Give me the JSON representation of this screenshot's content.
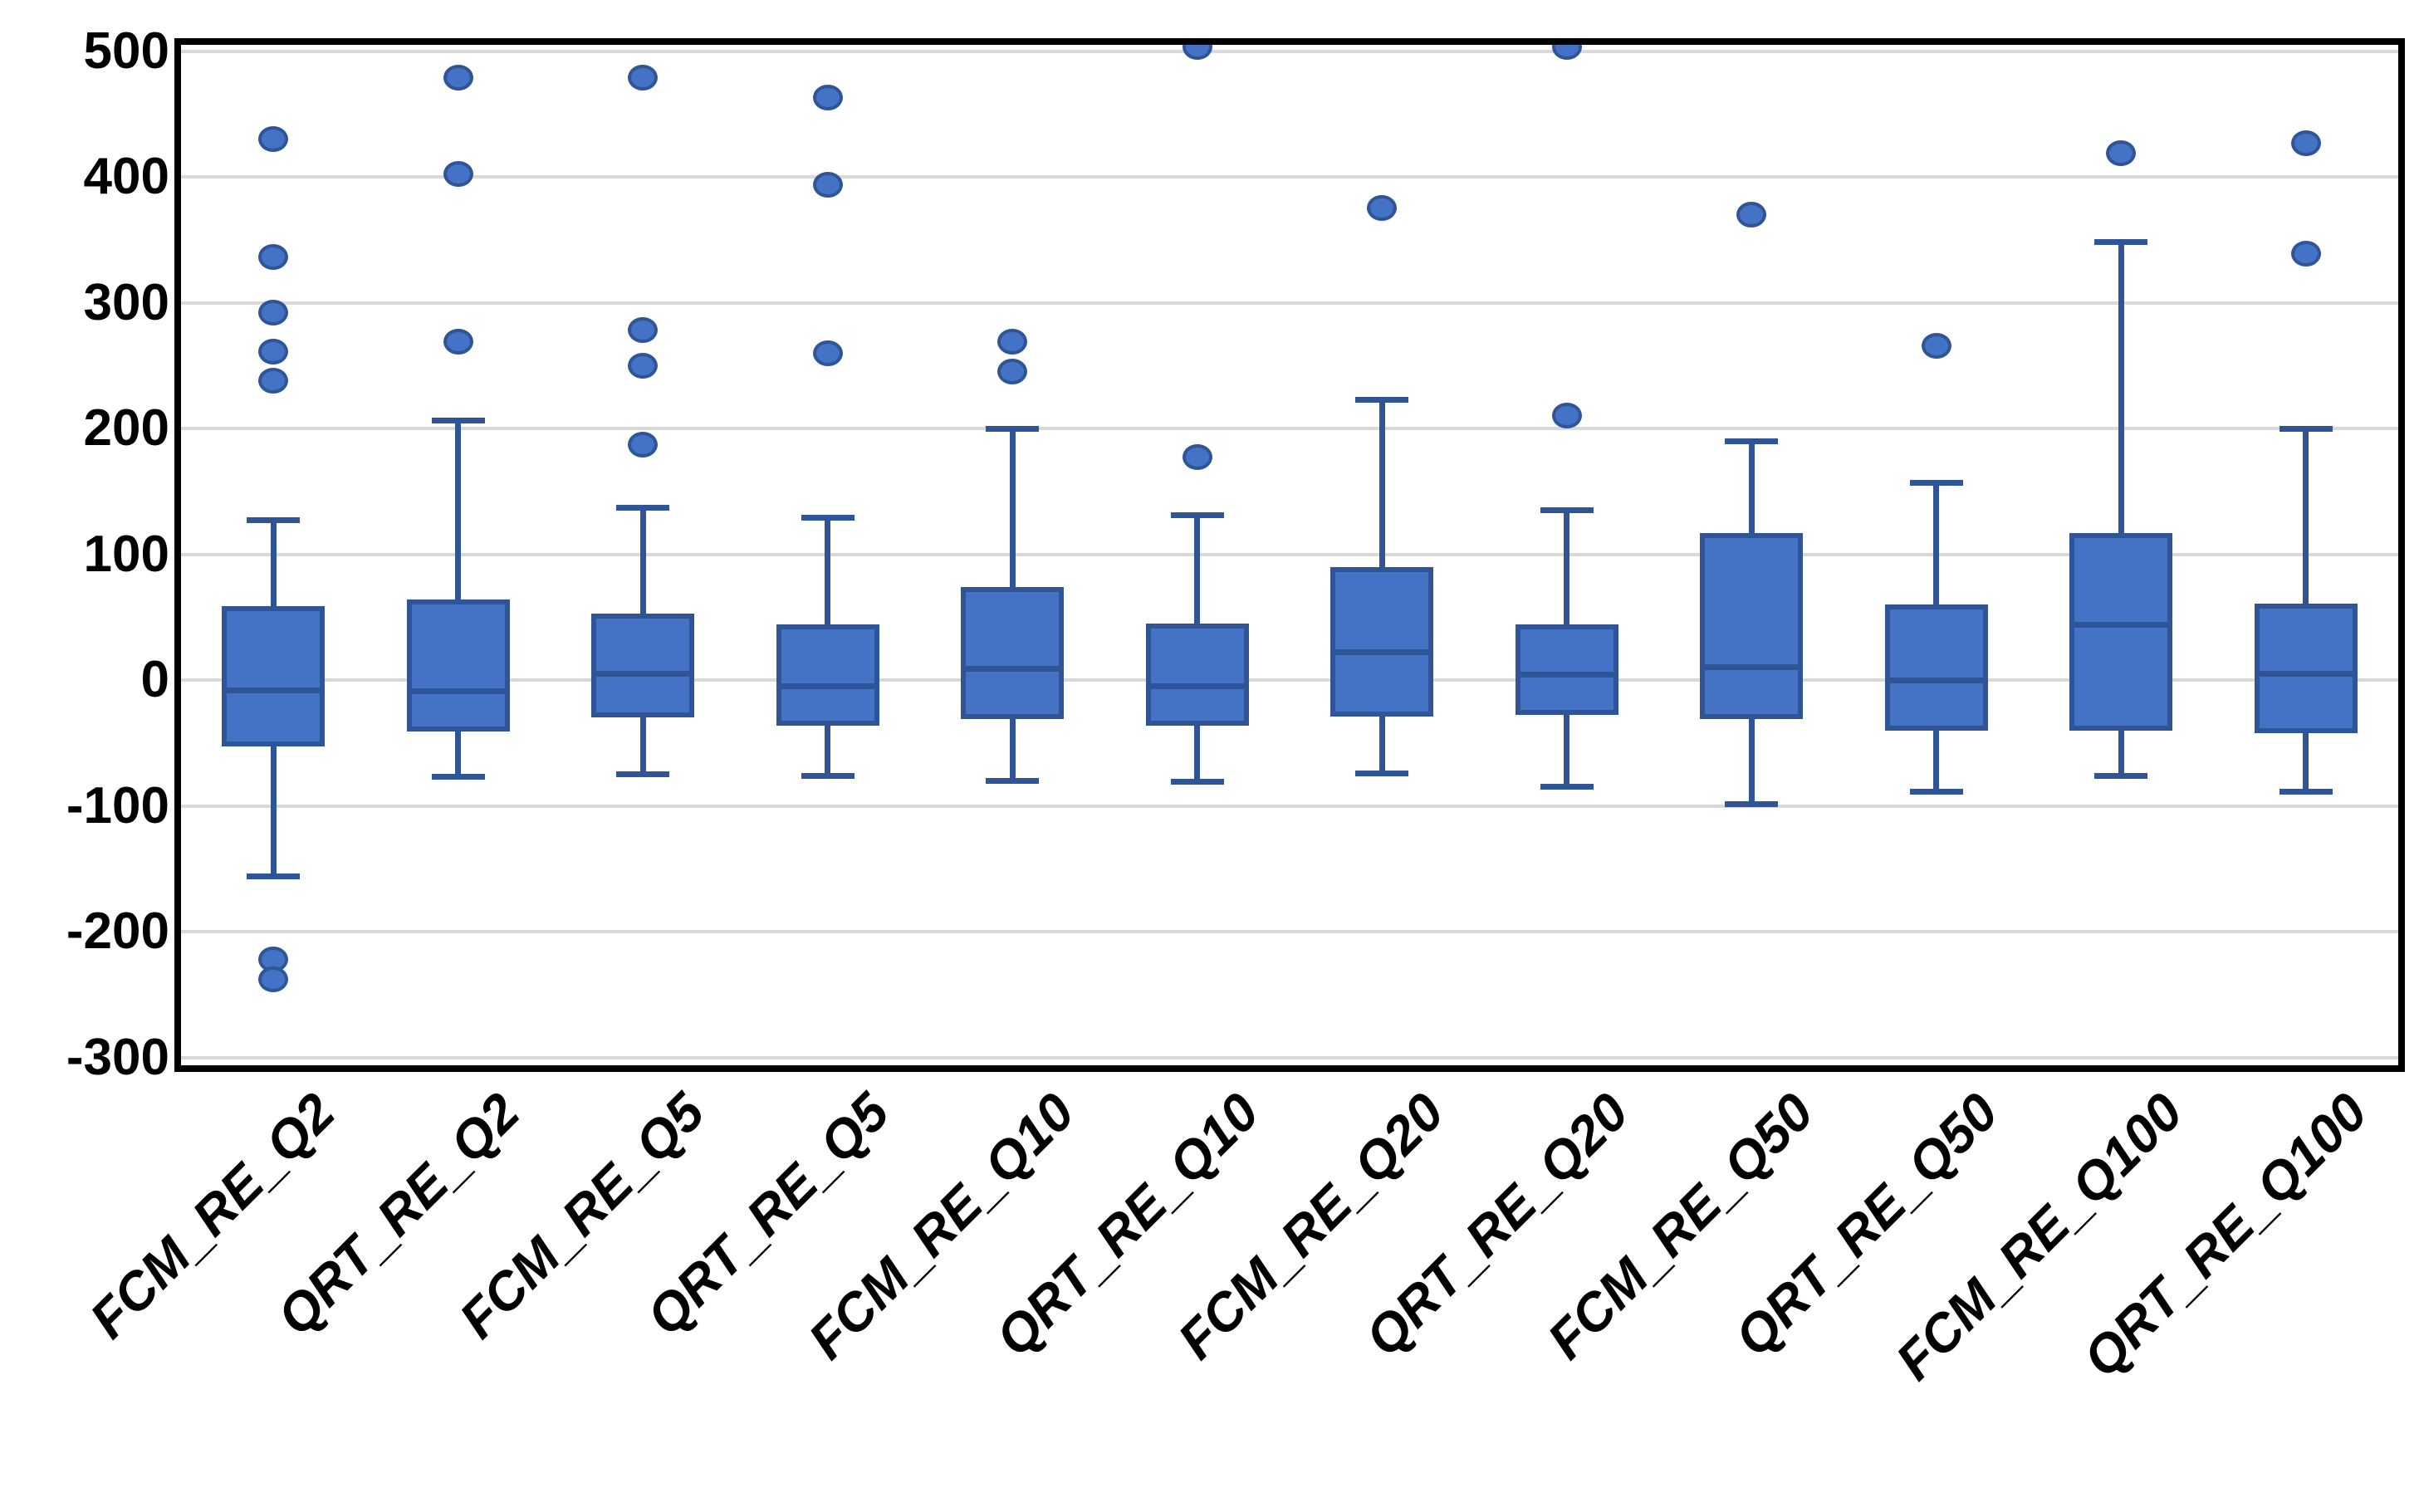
{
  "chart_data": {
    "type": "box",
    "title": "",
    "xlabel": "",
    "ylabel": "",
    "grid": true,
    "legend": false,
    "y_axis": {
      "min": -300,
      "max": 500,
      "step": 100,
      "tick_labels": [
        "500",
        "400",
        "300",
        "200",
        "100",
        "0",
        "-100",
        "-200",
        "-300"
      ]
    },
    "categories": [
      "FCM_RE_Q2",
      "QRT_RE_Q2",
      "FCM_RE_Q5",
      "QRT_RE_Q5",
      "FCM_RE_Q10",
      "QRT_RE_Q10",
      "FCM_RE_Q20",
      "QRT_RE_Q20",
      "FCM_RE_Q50",
      "QRT_RE_Q50",
      "FCM_RE_Q100",
      "QRT_RE_Q100"
    ],
    "boxes": [
      {
        "category": "FCM_RE_Q2",
        "whisker_low": -156,
        "q1": -53,
        "median": -8,
        "q3": 59,
        "whisker_high": 127,
        "outliers": [
          430,
          336,
          292,
          261,
          238,
          -222,
          -238
        ]
      },
      {
        "category": "QRT_RE_Q2",
        "whisker_low": -77,
        "q1": -41,
        "median": -9,
        "q3": 64,
        "whisker_high": 206,
        "outliers": [
          479,
          402,
          269
        ]
      },
      {
        "category": "FCM_RE_Q5",
        "whisker_low": -75,
        "q1": -30,
        "median": 5,
        "q3": 53,
        "whisker_high": 137,
        "outliers": [
          479,
          278,
          250,
          187
        ]
      },
      {
        "category": "QRT_RE_Q5",
        "whisker_low": -76,
        "q1": -36,
        "median": -5,
        "q3": 44,
        "whisker_high": 129,
        "outliers": [
          463,
          394,
          260
        ]
      },
      {
        "category": "FCM_RE_Q10",
        "whisker_low": -80,
        "q1": -31,
        "median": 9,
        "q3": 74,
        "whisker_high": 200,
        "outliers": [
          269,
          245
        ]
      },
      {
        "category": "QRT_RE_Q10",
        "whisker_low": -81,
        "q1": -36,
        "median": -5,
        "q3": 45,
        "whisker_high": 131,
        "outliers": [
          503,
          177
        ]
      },
      {
        "category": "FCM_RE_Q20",
        "whisker_low": -74,
        "q1": -29,
        "median": 22,
        "q3": 90,
        "whisker_high": 223,
        "outliers": [
          375
        ]
      },
      {
        "category": "QRT_RE_Q20",
        "whisker_low": -85,
        "q1": -28,
        "median": 4,
        "q3": 44,
        "whisker_high": 135,
        "outliers": [
          503,
          210
        ]
      },
      {
        "category": "FCM_RE_Q50",
        "whisker_low": -99,
        "q1": -31,
        "median": 10,
        "q3": 117,
        "whisker_high": 190,
        "outliers": [
          370
        ]
      },
      {
        "category": "QRT_RE_Q50",
        "whisker_low": -89,
        "q1": -40,
        "median": 0,
        "q3": 60,
        "whisker_high": 157,
        "outliers": [
          266
        ]
      },
      {
        "category": "FCM_RE_Q100",
        "whisker_low": -76,
        "q1": -40,
        "median": 44,
        "q3": 117,
        "whisker_high": 348,
        "outliers": [
          419
        ]
      },
      {
        "category": "QRT_RE_Q100",
        "whisker_low": -89,
        "q1": -42,
        "median": 5,
        "q3": 61,
        "whisker_high": 200,
        "outliers": [
          427,
          339
        ]
      }
    ],
    "colors": {
      "box_fill": "#4472C4",
      "box_border": "#2F5597",
      "whisker": "#2F5597",
      "median": "#2F5597",
      "outlier_fill": "#4472C4",
      "outlier_border": "#2F5597",
      "gridline": "#D9D9D9",
      "plot_border": "#000000",
      "label_color": "#000000"
    }
  }
}
